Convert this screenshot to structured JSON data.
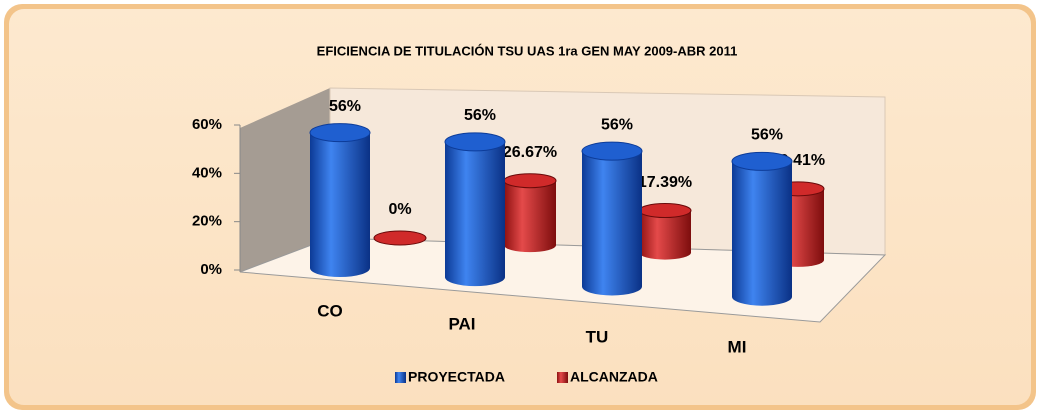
{
  "chart_data": {
    "type": "bar3d",
    "title": "EFICIENCIA DE TITULACIÓN TSU UAS 1ra GEN MAY 2009-ABR 2011",
    "categories": [
      "CO",
      "PAI",
      "TU",
      "MI"
    ],
    "series": [
      {
        "name": "PROYECTADA",
        "color": "#1f5fd0",
        "values": [
          56,
          56,
          56,
          56
        ],
        "value_labels": [
          "56%",
          "56%",
          "56%",
          "56%"
        ]
      },
      {
        "name": "ALCANZADA",
        "color": "#d02a2a",
        "values": [
          0,
          26.67,
          17.39,
          29.41
        ],
        "value_labels": [
          "0%",
          "26.67%",
          "17.39%",
          "29.41%"
        ]
      }
    ],
    "ylim": [
      0,
      60
    ],
    "yticks": [
      {
        "value": 0,
        "label": "0%"
      },
      {
        "value": 20,
        "label": "20%"
      },
      {
        "value": 40,
        "label": "40%"
      },
      {
        "value": 60,
        "label": "60%"
      }
    ],
    "legend": "bottom"
  }
}
